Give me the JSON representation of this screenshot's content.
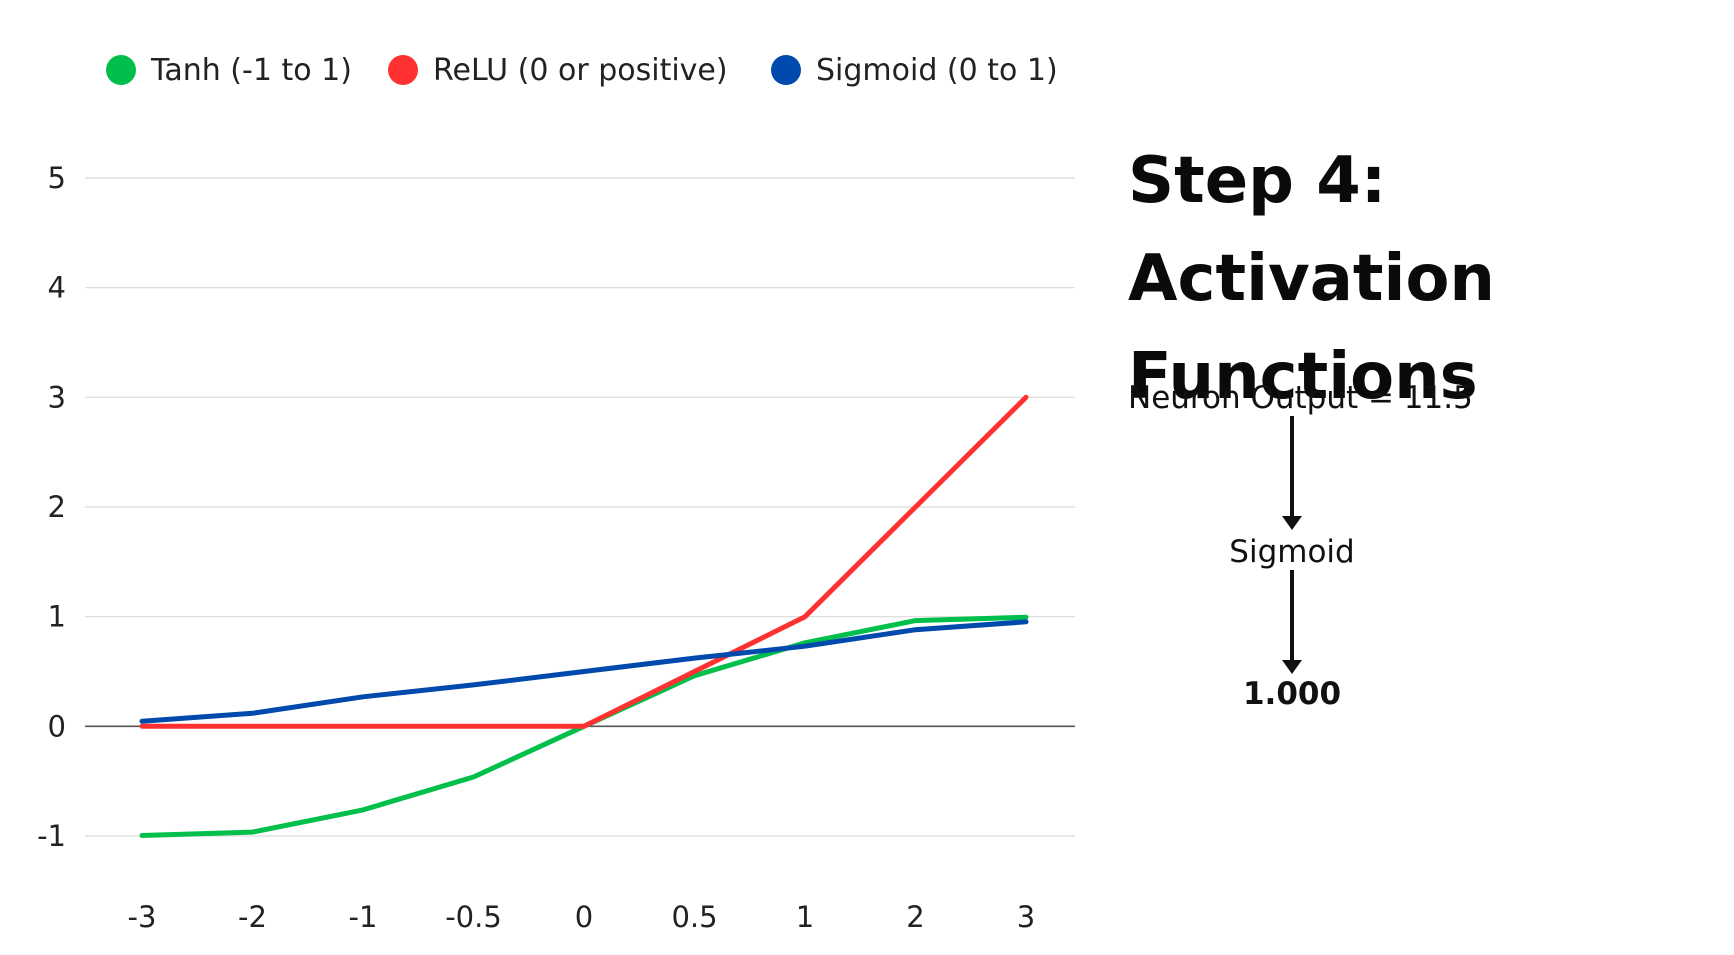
{
  "chart_data": {
    "type": "line",
    "categories": [
      "-3",
      "-2",
      "-1",
      "-0.5",
      "0",
      "0.5",
      "1",
      "2",
      "3"
    ],
    "series": [
      {
        "name": "Tanh (-1 to 1)",
        "color": "#00c04b",
        "values": [
          -0.995,
          -0.964,
          -0.762,
          -0.462,
          0,
          0.462,
          0.762,
          0.964,
          0.995
        ]
      },
      {
        "name": "ReLU (0 or positive)",
        "color": "#ff3131",
        "values": [
          0,
          0,
          0,
          0,
          0,
          0.5,
          1,
          2,
          3
        ]
      },
      {
        "name": "Sigmoid (0 to 1)",
        "color": "#004aad",
        "values": [
          0.047,
          0.119,
          0.269,
          0.378,
          0.5,
          0.622,
          0.731,
          0.881,
          0.953
        ]
      }
    ],
    "title": "",
    "xlabel": "",
    "ylabel": "",
    "ylim": [
      -1,
      5
    ],
    "yticks": [
      "-1",
      "0",
      "1",
      "2",
      "3",
      "4",
      "5"
    ],
    "grid": true,
    "legend": "top-left"
  },
  "panel": {
    "title": "Step 4: Activation Functions",
    "input_text": "Neuron Output = 11.5",
    "function_text": "Sigmoid",
    "result_text": "1.000"
  }
}
